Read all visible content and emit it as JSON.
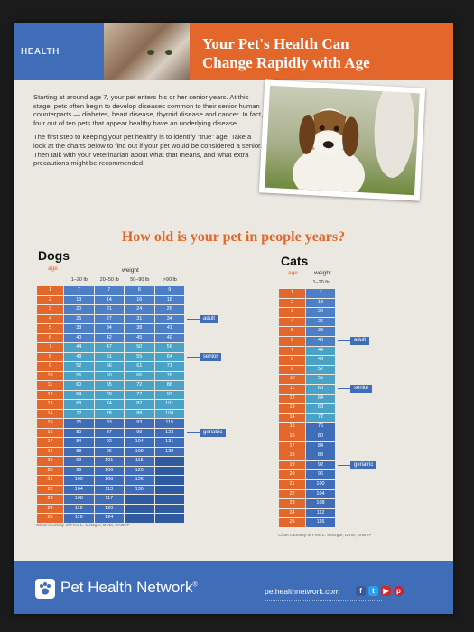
{
  "header": {
    "banner_text": "HEALTH",
    "title_line1": "Your Pet's Health Can",
    "title_line2": "Change Rapidly with Age"
  },
  "intro": {
    "paragraph1": "Starting at around age 7, your pet enters his or her senior years. At this stage, pets often begin to develop diseases common to their senior human counterparts — diabetes, heart disease, thyroid disease and cancer. In fact, four out of ten pets that appear healthy have an underlying disease.",
    "paragraph2": "The first step to keeping your pet healthy is to identify \"true\" age. Take a look at the charts below to find out if your pet would be considered a senior. Then talk with your veterinarian about what that means, and what extra precautions might be recommended."
  },
  "question": "How old is your pet in people years?",
  "dogs": {
    "title": "Dogs",
    "age_label": "age",
    "weight_label": "weight",
    "columns": [
      "1–20 lb",
      "20–50 lb",
      "50–90 lb",
      ">90 lb"
    ],
    "rows": [
      {
        "age": "1",
        "values": [
          "7",
          "7",
          "8",
          "9"
        ]
      },
      {
        "age": "2",
        "values": [
          "13",
          "14",
          "16",
          "18"
        ]
      },
      {
        "age": "3",
        "values": [
          "20",
          "21",
          "24",
          "26"
        ]
      },
      {
        "age": "4",
        "values": [
          "26",
          "27",
          "31",
          "34"
        ]
      },
      {
        "age": "5",
        "values": [
          "33",
          "34",
          "38",
          "41"
        ]
      },
      {
        "age": "6",
        "values": [
          "40",
          "42",
          "45",
          "49"
        ]
      },
      {
        "age": "7",
        "values": [
          "44",
          "47",
          "50",
          "56"
        ]
      },
      {
        "age": "8",
        "values": [
          "48",
          "51",
          "55",
          "64"
        ]
      },
      {
        "age": "9",
        "values": [
          "52",
          "56",
          "61",
          "71"
        ]
      },
      {
        "age": "10",
        "values": [
          "56",
          "60",
          "66",
          "78"
        ]
      },
      {
        "age": "11",
        "values": [
          "60",
          "65",
          "72",
          "86"
        ]
      },
      {
        "age": "12",
        "values": [
          "64",
          "69",
          "77",
          "93"
        ]
      },
      {
        "age": "13",
        "values": [
          "68",
          "74",
          "82",
          "101"
        ]
      },
      {
        "age": "14",
        "values": [
          "72",
          "78",
          "88",
          "108"
        ]
      },
      {
        "age": "15",
        "values": [
          "76",
          "83",
          "93",
          "115"
        ]
      },
      {
        "age": "16",
        "values": [
          "80",
          "87",
          "99",
          "123"
        ]
      },
      {
        "age": "17",
        "values": [
          "84",
          "92",
          "104",
          "131"
        ]
      },
      {
        "age": "18",
        "values": [
          "88",
          "96",
          "109",
          "139"
        ]
      },
      {
        "age": "19",
        "values": [
          "92",
          "101",
          "115",
          ""
        ]
      },
      {
        "age": "20",
        "values": [
          "96",
          "106",
          "120",
          ""
        ]
      },
      {
        "age": "21",
        "values": [
          "100",
          "109",
          "126",
          ""
        ]
      },
      {
        "age": "22",
        "values": [
          "104",
          "113",
          "130",
          ""
        ]
      },
      {
        "age": "23",
        "values": [
          "108",
          "117",
          "",
          ""
        ]
      },
      {
        "age": "24",
        "values": [
          "112",
          "120",
          "",
          ""
        ]
      },
      {
        "age": "25",
        "values": [
          "116",
          "124",
          "",
          ""
        ]
      }
    ],
    "stages": {
      "adult": "adult",
      "senior": "senior",
      "geriatric": "geriatric"
    },
    "credit": "Chart courtesy of Fred L. Metzger, DVM, DABVP"
  },
  "cats": {
    "title": "Cats",
    "age_label": "age",
    "weight_label": "weight",
    "columns": [
      "1–20 lb"
    ],
    "rows": [
      {
        "age": "1",
        "values": [
          "7"
        ]
      },
      {
        "age": "2",
        "values": [
          "13"
        ]
      },
      {
        "age": "3",
        "values": [
          "20"
        ]
      },
      {
        "age": "4",
        "values": [
          "26"
        ]
      },
      {
        "age": "5",
        "values": [
          "33"
        ]
      },
      {
        "age": "6",
        "values": [
          "40"
        ]
      },
      {
        "age": "7",
        "values": [
          "44"
        ]
      },
      {
        "age": "8",
        "values": [
          "48"
        ]
      },
      {
        "age": "9",
        "values": [
          "52"
        ]
      },
      {
        "age": "10",
        "values": [
          "56"
        ]
      },
      {
        "age": "11",
        "values": [
          "60"
        ]
      },
      {
        "age": "12",
        "values": [
          "64"
        ]
      },
      {
        "age": "13",
        "values": [
          "68"
        ]
      },
      {
        "age": "14",
        "values": [
          "72"
        ]
      },
      {
        "age": "15",
        "values": [
          "76"
        ]
      },
      {
        "age": "16",
        "values": [
          "80"
        ]
      },
      {
        "age": "17",
        "values": [
          "84"
        ]
      },
      {
        "age": "18",
        "values": [
          "88"
        ]
      },
      {
        "age": "19",
        "values": [
          "92"
        ]
      },
      {
        "age": "20",
        "values": [
          "96"
        ]
      },
      {
        "age": "21",
        "values": [
          "100"
        ]
      },
      {
        "age": "22",
        "values": [
          "104"
        ]
      },
      {
        "age": "23",
        "values": [
          "108"
        ]
      },
      {
        "age": "24",
        "values": [
          "112"
        ]
      },
      {
        "age": "25",
        "values": [
          "116"
        ]
      }
    ],
    "stages": {
      "adult": "adult",
      "senior": "senior",
      "geriatric": "geriatric"
    },
    "credit": "Chart courtesy of Fred L. Metzger, DVM, DABVP"
  },
  "footer": {
    "brand": "Pet Health Network",
    "trademark": "®",
    "url": "pethealthnetwork.com",
    "social_icons": [
      "facebook-icon",
      "twitter-icon",
      "youtube-icon",
      "pinterest-icon"
    ]
  },
  "colors": {
    "orange": "#e3672a",
    "blue": "#3f6db8",
    "light_blue": "#5d8fd0",
    "teal": "#4aa3c6"
  }
}
